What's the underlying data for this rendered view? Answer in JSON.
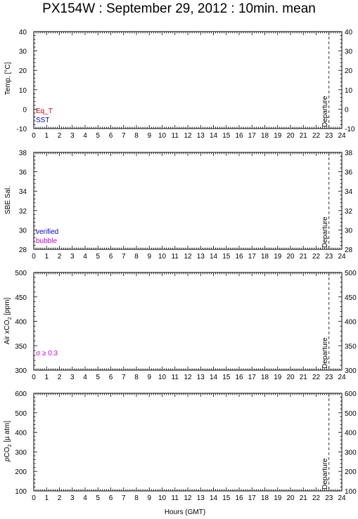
{
  "title": "PX154W : September 29, 2012 : 10min. mean",
  "xlabel": "Hours (GMT)",
  "colors": {
    "eq_t": "#cc0000",
    "sst": "#0000cc",
    "verified": "#0000cc",
    "bubble": "#cc00cc",
    "sigma": "#cc00cc"
  },
  "panels": [
    {
      "ylabel": "Temp. [°C]",
      "legend": [
        {
          "text": "Eq_T",
          "color": "#cc0000"
        },
        {
          "text": "SST",
          "color": "#0000cc"
        }
      ],
      "departure_label": "Departure"
    },
    {
      "ylabel": "SBE Sal.",
      "legend": [
        {
          "text": "verified",
          "color": "#0000cc"
        },
        {
          "text": "bubble",
          "color": "#cc00cc"
        }
      ],
      "departure_label": "Departure"
    },
    {
      "ylabel_main": "Air xCO",
      "ylabel_sub": "2",
      "ylabel_unit": " [ppm]",
      "legend": [
        {
          "text": "σ ≥ 0.3",
          "color": "#cc00cc"
        }
      ],
      "departure_label": "Departure"
    },
    {
      "ylabel_pre": "p",
      "ylabel_main": "CO",
      "ylabel_sub": "2",
      "ylabel_unit": " [µ atm]",
      "legend": [],
      "departure_label": "Departure"
    }
  ],
  "chart_data": [
    {
      "type": "line",
      "title": "PX154W : September 29, 2012 : 10min. mean",
      "xlabel": "",
      "ylabel": "Temp. [°C]",
      "xlim": [
        0,
        24
      ],
      "ylim": [
        -10,
        40
      ],
      "xticks": [
        0,
        1,
        2,
        3,
        4,
        5,
        6,
        7,
        8,
        9,
        10,
        11,
        12,
        13,
        14,
        15,
        16,
        17,
        18,
        19,
        20,
        21,
        22,
        23,
        24
      ],
      "yticks": [
        -10,
        0,
        10,
        20,
        30,
        40
      ],
      "series": [
        {
          "name": "Eq_T",
          "x": [],
          "y": []
        },
        {
          "name": "SST",
          "x": [],
          "y": []
        }
      ],
      "vline": {
        "x": 23.0,
        "label": "Departure"
      }
    },
    {
      "type": "line",
      "ylabel": "SBE Sal.",
      "xlim": [
        0,
        24
      ],
      "ylim": [
        28,
        38
      ],
      "xticks": [
        0,
        1,
        2,
        3,
        4,
        5,
        6,
        7,
        8,
        9,
        10,
        11,
        12,
        13,
        14,
        15,
        16,
        17,
        18,
        19,
        20,
        21,
        22,
        23,
        24
      ],
      "yticks": [
        28,
        30,
        32,
        34,
        36,
        38
      ],
      "series": [
        {
          "name": "verified",
          "x": [],
          "y": []
        },
        {
          "name": "bubble",
          "x": [],
          "y": []
        }
      ],
      "vline": {
        "x": 23.0,
        "label": "Departure"
      }
    },
    {
      "type": "line",
      "ylabel": "Air xCO2 [ppm]",
      "xlim": [
        0,
        24
      ],
      "ylim": [
        300,
        500
      ],
      "xticks": [
        0,
        1,
        2,
        3,
        4,
        5,
        6,
        7,
        8,
        9,
        10,
        11,
        12,
        13,
        14,
        15,
        16,
        17,
        18,
        19,
        20,
        21,
        22,
        23,
        24
      ],
      "yticks": [
        300,
        350,
        400,
        450,
        500
      ],
      "series": [
        {
          "name": "σ ≥ 0.3",
          "x": [],
          "y": []
        }
      ],
      "vline": {
        "x": 23.0,
        "label": "Departure"
      }
    },
    {
      "type": "line",
      "ylabel": "pCO2 [µ atm]",
      "xlabel": "Hours (GMT)",
      "xlim": [
        0,
        24
      ],
      "ylim": [
        100,
        600
      ],
      "xticks": [
        0,
        1,
        2,
        3,
        4,
        5,
        6,
        7,
        8,
        9,
        10,
        11,
        12,
        13,
        14,
        15,
        16,
        17,
        18,
        19,
        20,
        21,
        22,
        23,
        24
      ],
      "yticks": [
        100,
        200,
        300,
        400,
        500,
        600
      ],
      "series": [],
      "vline": {
        "x": 23.0,
        "label": "Departure"
      }
    }
  ]
}
